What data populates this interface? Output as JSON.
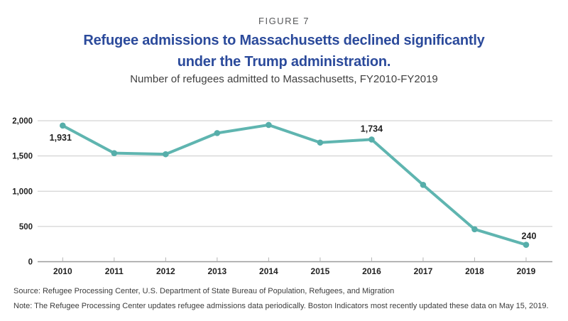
{
  "figure_label": "FIGURE 7",
  "header": {
    "title_lines": [
      "Refugee admissions to Massachusetts declined significantly",
      "under the Trump administration."
    ],
    "subtitle": "Number of refugees admitted to Massachusetts, FY2010-FY2019"
  },
  "chart_data": {
    "type": "line",
    "x": [
      "2010",
      "2011",
      "2012",
      "2013",
      "2014",
      "2015",
      "2016",
      "2017",
      "2018",
      "2019"
    ],
    "values": [
      1931,
      1540,
      1525,
      1825,
      1940,
      1690,
      1734,
      1090,
      460,
      240
    ],
    "title": "Number of refugees admitted to Massachusetts, FY2010-FY2019",
    "xlabel": "",
    "ylabel": "",
    "ylim": [
      0,
      2000
    ],
    "yticks": [
      0,
      500,
      1000,
      1500,
      2000
    ],
    "ytick_labels": [
      "0",
      "500",
      "1,000",
      "1,500",
      "2,000"
    ],
    "grid": true,
    "legend": "none",
    "line_color": "#5fb5b0",
    "marker_color": "#56aeaa",
    "annotations": [
      {
        "x": "2010",
        "text": "1,931",
        "position": "below"
      },
      {
        "x": "2016",
        "text": "1,734",
        "position": "above"
      },
      {
        "x": "2019",
        "text": "240",
        "position": "above-right"
      }
    ]
  },
  "footer": {
    "source": "Source: Refugee Processing Center, U.S. Department of State Bureau of Population, Refugees, and Migration",
    "note": "Note: The Refugee Processing Center updates refugee admissions data periodically. Boston Indicators most recently updated these data on May 15, 2019."
  },
  "colors": {
    "title_blue": "#2b4a9b",
    "grid_gray": "#cacaca",
    "axis_gray": "#9a9a9a",
    "tick_gray": "#b3b3b3",
    "label_dark": "#222222",
    "annotation_dark": "#1f1f1f"
  }
}
